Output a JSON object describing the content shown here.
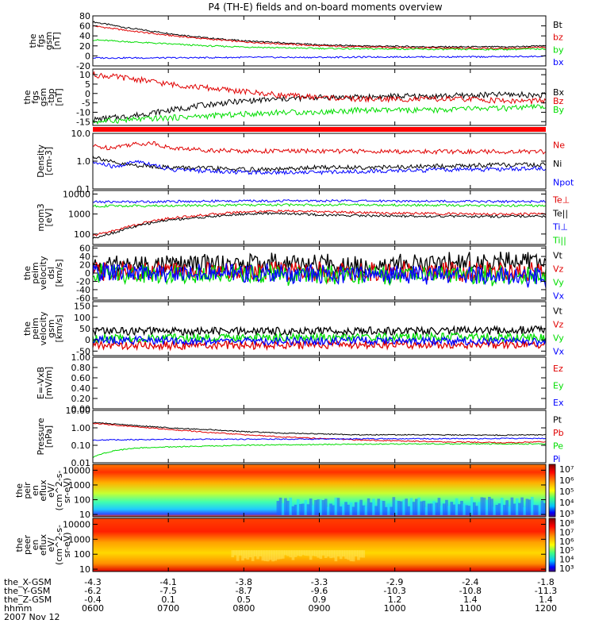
{
  "title": "P4 (TH-E) fields and on-board moments overview",
  "colors": {
    "black": "#000000",
    "red": "#e00000",
    "green": "#00dd00",
    "blue": "#0000ff",
    "bar": "#ff0000"
  },
  "chart_data": [
    {
      "type": "line",
      "ylabel": [
        "the",
        "fgs",
        "gsm",
        "[nT]"
      ],
      "yticks": [
        "80",
        "60",
        "40",
        "20",
        "0",
        "-20"
      ],
      "ylim": [
        -20,
        80
      ],
      "xlim": [
        6.0,
        12.0
      ],
      "legend": [
        "Bt",
        "bz",
        "by",
        "bx"
      ],
      "series": [
        {
          "name": "Bt",
          "color": "#000000",
          "x": [
            6.0,
            6.5,
            7.0,
            7.5,
            8.0,
            8.5,
            9.0,
            9.5,
            10.0,
            10.5,
            11.0,
            11.5,
            12.0
          ],
          "y": [
            68,
            55,
            45,
            36,
            30,
            26,
            22,
            20,
            19,
            18,
            18,
            18,
            20
          ]
        },
        {
          "name": "bz",
          "color": "#e00000",
          "x": [
            6.0,
            6.5,
            7.0,
            7.5,
            8.0,
            8.5,
            9.0,
            9.5,
            10.0,
            10.5,
            11.0,
            11.5,
            12.0
          ],
          "y": [
            60,
            50,
            41,
            34,
            28,
            24,
            20,
            18,
            17,
            16,
            15,
            15,
            17
          ]
        },
        {
          "name": "by",
          "color": "#00dd00",
          "x": [
            6.0,
            6.5,
            7.0,
            7.5,
            8.0,
            8.5,
            9.0,
            9.5,
            10.0,
            10.5,
            11.0,
            11.5,
            12.0
          ],
          "y": [
            32,
            28,
            24,
            20,
            18,
            16,
            15,
            14,
            14,
            13,
            13,
            13,
            14
          ]
        },
        {
          "name": "bx",
          "color": "#0000ff",
          "x": [
            6.0,
            7.0,
            8.0,
            9.0,
            10.0,
            11.0,
            12.0
          ],
          "y": [
            -4,
            -4,
            -3,
            -3,
            -2,
            -2,
            -1
          ]
        }
      ]
    },
    {
      "type": "line",
      "ylabel": [
        "the",
        "fgs",
        "gsm",
        "-tbp",
        "[nT]"
      ],
      "yticks": [
        "10",
        "5",
        "0",
        "-5",
        "-10",
        "-15"
      ],
      "ylim": [
        -17,
        13
      ],
      "xlim": [
        6.0,
        12.0
      ],
      "legend": [
        "Bx",
        "Bz",
        "By"
      ],
      "series": [
        {
          "name": "Bx",
          "color": "#000000",
          "x": [
            6.0,
            6.5,
            7.0,
            7.5,
            8.0,
            8.5,
            9.0,
            9.5,
            10.0,
            10.5,
            11.0,
            11.5,
            12.0
          ],
          "y": [
            -14,
            -12,
            -9,
            -6,
            -4,
            -3,
            -2,
            -2,
            -1.5,
            -1.5,
            -1,
            -0.5,
            -1
          ]
        },
        {
          "name": "Bz",
          "color": "#e00000",
          "x": [
            6.0,
            6.5,
            7.0,
            7.5,
            8.0,
            8.5,
            9.0,
            9.5,
            10.0,
            10.5,
            11.0,
            11.5,
            12.0
          ],
          "y": [
            10,
            8,
            5,
            3,
            1,
            -1,
            -2,
            -3,
            -3,
            -3,
            -3,
            -4,
            -4
          ]
        },
        {
          "name": "By",
          "color": "#00dd00",
          "x": [
            6.0,
            6.5,
            7.0,
            7.5,
            8.0,
            8.5,
            9.0,
            9.5,
            10.0,
            10.5,
            11.0,
            11.5,
            12.0
          ],
          "y": [
            -15,
            -14,
            -13,
            -12,
            -11,
            -10,
            -10,
            -9,
            -9,
            -9,
            -8,
            -8,
            -7
          ]
        }
      ]
    },
    {
      "type": "line",
      "ylabel": [
        "Density",
        "[cm-3]"
      ],
      "yticks": [
        "10.0",
        "1.0",
        "0.1"
      ],
      "yscale": "log",
      "ylim": [
        0.1,
        10
      ],
      "xlim": [
        6.0,
        12.0
      ],
      "legend": [
        "Ne",
        "Ni",
        "Npot"
      ],
      "series": [
        {
          "name": "Ne",
          "color": "#e00000",
          "x": [
            6.0,
            6.2,
            6.5,
            6.8,
            7.0,
            7.5,
            8.0,
            9.0,
            10.0,
            11.0,
            12.0
          ],
          "y": [
            3.5,
            3.0,
            4.0,
            4.5,
            3.0,
            2.5,
            2.3,
            2.3,
            2.2,
            2.2,
            2.2
          ]
        },
        {
          "name": "Ni",
          "color": "#000000",
          "x": [
            6.0,
            6.3,
            6.6,
            7.0,
            7.5,
            8.0,
            8.5,
            9.0,
            10.0,
            11.0,
            12.0
          ],
          "y": [
            1.5,
            0.8,
            0.7,
            0.6,
            0.55,
            0.5,
            0.5,
            0.6,
            0.6,
            0.7,
            0.75
          ]
        },
        {
          "name": "Npot",
          "color": "#0000ff",
          "x": [
            6.0,
            6.3,
            6.6,
            7.0,
            7.5,
            8.0,
            9.0,
            10.0,
            11.0,
            12.0
          ],
          "y": [
            0.9,
            0.6,
            1.0,
            0.5,
            0.45,
            0.4,
            0.4,
            0.45,
            0.5,
            0.55
          ]
        }
      ]
    },
    {
      "type": "line",
      "ylabel": [
        "mom3",
        "[eV]"
      ],
      "yticks": [
        "10000",
        "1000",
        "100"
      ],
      "yscale": "log",
      "ylim": [
        30,
        15000
      ],
      "xlim": [
        6.0,
        12.0
      ],
      "legend": [
        "Te⊥",
        "Te||",
        "Ti⊥",
        "Ti||"
      ],
      "series": [
        {
          "name": "Te⊥",
          "color": "#e00000",
          "x": [
            6.0,
            6.3,
            6.6,
            7.0,
            7.5,
            8.0,
            8.5,
            9.0,
            9.5,
            10.0,
            11.0,
            12.0
          ],
          "y": [
            80,
            150,
            300,
            600,
            900,
            1300,
            1400,
            1300,
            1200,
            1100,
            1000,
            1000
          ]
        },
        {
          "name": "Te||",
          "color": "#000000",
          "x": [
            6.0,
            6.3,
            6.6,
            7.0,
            7.5,
            8.0,
            8.5,
            9.0,
            9.5,
            10.0,
            11.0,
            12.0
          ],
          "y": [
            60,
            120,
            250,
            500,
            700,
            1000,
            1100,
            900,
            850,
            800,
            750,
            750
          ]
        },
        {
          "name": "Ti⊥",
          "color": "#0000ff",
          "x": [
            6.0,
            7.0,
            8.0,
            9.0,
            10.0,
            11.0,
            12.0
          ],
          "y": [
            4000,
            4200,
            4500,
            4600,
            4500,
            4300,
            4200
          ]
        },
        {
          "name": "Ti||",
          "color": "#00dd00",
          "x": [
            6.0,
            7.0,
            8.0,
            9.0,
            10.0,
            11.0,
            12.0
          ],
          "y": [
            2500,
            2600,
            2800,
            2900,
            2800,
            2700,
            2600
          ]
        }
      ]
    },
    {
      "type": "line",
      "ylabel": [
        "the",
        "peim",
        "velocity",
        "dsl",
        "[km/s]"
      ],
      "yticks": [
        "60",
        "40",
        "20",
        "0",
        "-20",
        "-40",
        "-60"
      ],
      "ylim": [
        -65,
        65
      ],
      "xlim": [
        6.0,
        12.0
      ],
      "legend": [
        "Vt",
        "Vz",
        "Vy",
        "Vx"
      ],
      "series": [
        {
          "name": "Vt",
          "color": "#000000",
          "x": [
            6.0,
            7.0,
            8.0,
            9.0,
            10.0,
            11.0,
            12.0
          ],
          "y": [
            18,
            20,
            22,
            22,
            24,
            26,
            28
          ]
        },
        {
          "name": "Vz",
          "color": "#e00000",
          "x": [
            6.0,
            7.0,
            8.0,
            9.0,
            10.0,
            11.0,
            12.0
          ],
          "y": [
            4,
            5,
            4,
            3,
            4,
            3,
            2
          ]
        },
        {
          "name": "Vy",
          "color": "#00dd00",
          "x": [
            6.0,
            7.0,
            8.0,
            9.0,
            10.0,
            11.0,
            12.0
          ],
          "y": [
            0,
            -2,
            -3,
            -4,
            -3,
            -5,
            -6
          ]
        },
        {
          "name": "Vx",
          "color": "#0000ff",
          "x": [
            6.0,
            7.0,
            8.0,
            9.0,
            10.0,
            11.0,
            12.0
          ],
          "y": [
            2,
            0,
            -1,
            -3,
            -2,
            -6,
            -10
          ]
        }
      ]
    },
    {
      "type": "line",
      "ylabel": [
        "the",
        "peim",
        "velocity",
        "gsm",
        "[km/s]"
      ],
      "yticks": [
        "150",
        "100",
        "50",
        "0",
        "-50"
      ],
      "ylim": [
        -70,
        170
      ],
      "xlim": [
        6.0,
        12.0
      ],
      "legend": [
        "Vt",
        "Vz",
        "Vy",
        "Vx"
      ],
      "series": [
        {
          "name": "Vt",
          "color": "#000000",
          "x": [
            6.0,
            7.0,
            8.0,
            9.0,
            10.0,
            11.0,
            12.0
          ],
          "y": [
            40,
            38,
            38,
            40,
            40,
            42,
            45
          ]
        },
        {
          "name": "Vz",
          "color": "#e00000",
          "x": [
            6.0,
            7.0,
            8.0,
            9.0,
            10.0,
            11.0,
            12.0
          ],
          "y": [
            -25,
            -25,
            -25,
            -22,
            -22,
            -22,
            -20
          ]
        },
        {
          "name": "Vy",
          "color": "#00dd00",
          "x": [
            6.0,
            7.0,
            8.0,
            9.0,
            10.0,
            11.0,
            12.0
          ],
          "y": [
            5,
            8,
            10,
            10,
            12,
            12,
            10
          ]
        },
        {
          "name": "Vx",
          "color": "#0000ff",
          "x": [
            6.0,
            7.0,
            8.0,
            9.0,
            10.0,
            11.0,
            12.0
          ],
          "y": [
            0,
            -5,
            -5,
            -5,
            -5,
            -5,
            -8
          ]
        }
      ]
    },
    {
      "type": "line",
      "ylabel": [
        "E=-VxB",
        "[mV/m]"
      ],
      "yticks": [
        "1.00",
        "0.80",
        "0.60",
        "0.40",
        "0.20",
        "0.00"
      ],
      "ylim": [
        0,
        1
      ],
      "xlim": [
        6.0,
        12.0
      ],
      "legend": [
        "Ez",
        "Ey",
        "Ex"
      ],
      "series": []
    },
    {
      "type": "line",
      "ylabel": [
        "Pressure",
        "[nPa]"
      ],
      "yticks": [
        "10.00",
        "1.00",
        "0.10",
        "0.01"
      ],
      "yscale": "log",
      "ylim": [
        0.01,
        10
      ],
      "xlim": [
        6.0,
        12.0
      ],
      "legend": [
        "Pt",
        "Pb",
        "Pe",
        "Pi"
      ],
      "series": [
        {
          "name": "Pt",
          "color": "#000000",
          "x": [
            6.0,
            6.5,
            7.0,
            7.5,
            8.0,
            8.5,
            9.0,
            9.5,
            10.0,
            10.5,
            11.0,
            11.5,
            12.0
          ],
          "y": [
            2.0,
            1.4,
            1.0,
            0.8,
            0.6,
            0.5,
            0.45,
            0.4,
            0.4,
            0.4,
            0.38,
            0.38,
            0.4
          ]
        },
        {
          "name": "Pb",
          "color": "#e00000",
          "x": [
            6.0,
            6.5,
            7.0,
            7.5,
            8.0,
            8.5,
            9.0,
            9.5,
            10.0,
            10.5,
            11.0,
            11.5,
            12.0
          ],
          "y": [
            1.8,
            1.2,
            0.8,
            0.55,
            0.4,
            0.3,
            0.25,
            0.2,
            0.18,
            0.16,
            0.15,
            0.14,
            0.16
          ]
        },
        {
          "name": "Pe",
          "color": "#00dd00",
          "x": [
            6.0,
            6.3,
            6.6,
            7.0,
            7.5,
            8.0,
            9.0,
            10.0,
            11.0,
            12.0
          ],
          "y": [
            0.02,
            0.05,
            0.07,
            0.08,
            0.09,
            0.1,
            0.11,
            0.12,
            0.12,
            0.12
          ]
        },
        {
          "name": "Pi",
          "color": "#0000ff",
          "x": [
            6.0,
            7.0,
            8.0,
            9.0,
            10.0,
            11.0,
            12.0
          ],
          "y": [
            0.2,
            0.22,
            0.22,
            0.23,
            0.24,
            0.24,
            0.25
          ]
        }
      ]
    },
    {
      "type": "heatmap",
      "ylabel": [
        "the",
        "peir",
        "en",
        "eflux",
        "eV/",
        "(cm^2-s-",
        "sr-eV)"
      ],
      "yticks": [
        "10000",
        "1000",
        "100",
        "10"
      ],
      "yscale": "log",
      "ylim": [
        7,
        25000
      ],
      "xlim": [
        6.0,
        12.0
      ],
      "colorbar_ticks": [
        "10⁷",
        "10⁶",
        "10⁵",
        "10⁴",
        "10³"
      ]
    },
    {
      "type": "heatmap",
      "ylabel": [
        "the",
        "peer",
        "en",
        "eflux",
        "eV/",
        "(cm^2-s-",
        "sr-eV)"
      ],
      "yticks": [
        "10000",
        "1000",
        "100",
        "10"
      ],
      "yscale": "log",
      "ylim": [
        7,
        25000
      ],
      "xlim": [
        6.0,
        12.0
      ],
      "colorbar_ticks": [
        "10⁸",
        "10⁷",
        "10⁶",
        "10⁵",
        "10⁴",
        "10³"
      ]
    }
  ],
  "ephemeris": {
    "labels": [
      "the_X-GSM",
      "the_Y-GSM",
      "the_Z-GSM",
      "hhmm",
      "2007 Nov 12"
    ],
    "times": [
      "0600",
      "0700",
      "0800",
      "0900",
      "1000",
      "1100",
      "1200"
    ],
    "x_gsm": [
      "-4.3",
      "-4.1",
      "-3.8",
      "-3.3",
      "-2.9",
      "-2.4",
      "-1.8"
    ],
    "y_gsm": [
      "-6.2",
      "-7.5",
      "-8.7",
      "-9.6",
      "-10.3",
      "-10.8",
      "-11.3"
    ],
    "z_gsm": [
      "-0.4",
      "0.1",
      "0.5",
      "0.9",
      "1.2",
      "1.4",
      "1.4"
    ]
  }
}
